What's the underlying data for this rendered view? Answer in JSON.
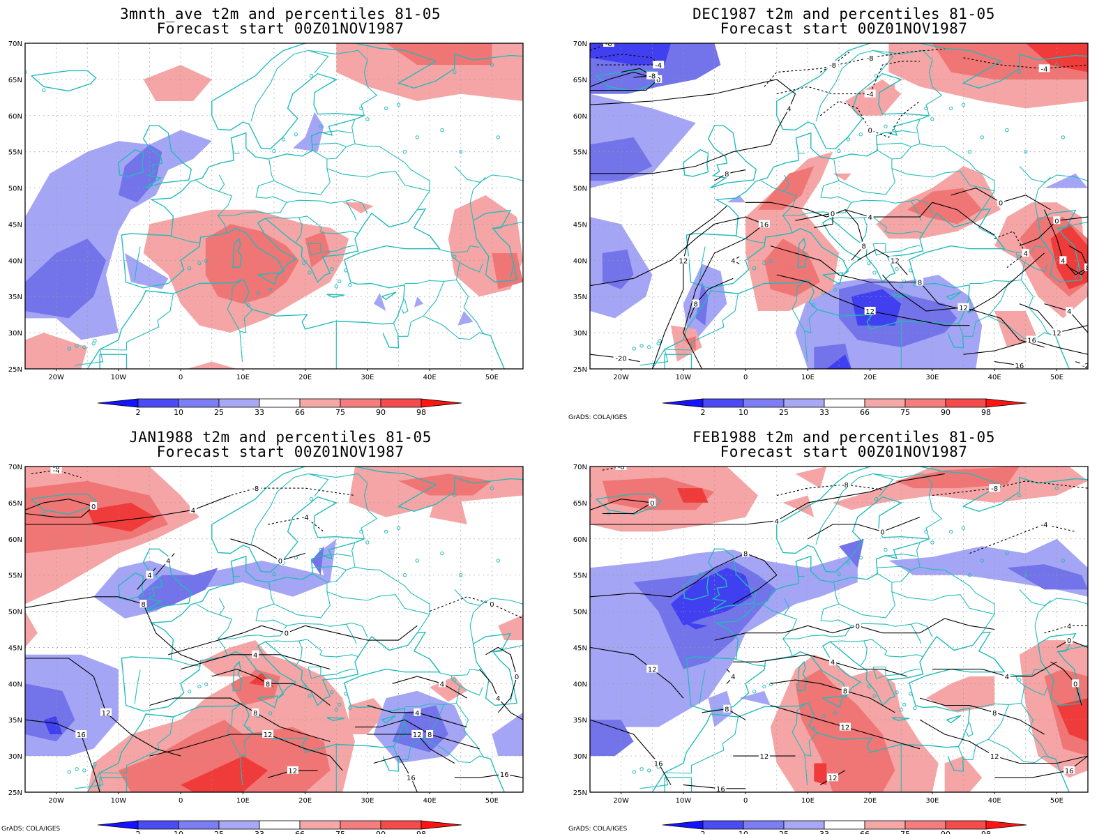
{
  "figure": {
    "panels": [
      {
        "title_line1": "3mnth_ave t2m and percentiles 81-05",
        "title_line2": "Forecast start 00Z01NOV1987",
        "credit": ""
      },
      {
        "title_line1": "DEC1987 t2m and percentiles 81-05",
        "title_line2": "Forecast start 00Z01NOV1987",
        "credit": "GrADS: COLA/IGES"
      },
      {
        "title_line1": "JAN1988 t2m and percentiles 81-05",
        "title_line2": "Forecast start 00Z01NOV1987",
        "credit": "GrADS: COLA/IGES"
      },
      {
        "title_line1": "FEB1988 t2m and percentiles 81-05",
        "title_line2": "Forecast start 00Z01NOV1987",
        "credit": "GrADS: COLA/IGES"
      }
    ],
    "lon_labels": [
      "20W",
      "10W",
      "0",
      "10E",
      "20E",
      "30E",
      "40E",
      "50E"
    ],
    "lat_labels": [
      "70N",
      "65N",
      "60N",
      "55N",
      "50N",
      "45N",
      "40N",
      "35N",
      "30N",
      "25N"
    ],
    "colorbar": {
      "labels": [
        "2",
        "10",
        "25",
        "33",
        "66",
        "75",
        "90",
        "98"
      ],
      "cold_colors": [
        "#1414ff",
        "#4b4bf5",
        "#7d7df5",
        "#a8a8f5"
      ],
      "warm_colors": [
        "#f5a8a8",
        "#f57d7d",
        "#f54b4b",
        "#ff1414"
      ]
    },
    "colors": {
      "coast": "#22bbbb",
      "contour": "#000000",
      "frame": "#000000",
      "blue_light": "#a5a5f5",
      "blue_mid": "#7373ea",
      "blue_dark": "#4040f0",
      "red_light": "#f5a5a5",
      "red_mid": "#f07575",
      "red_dark": "#f03b3b"
    }
  }
}
